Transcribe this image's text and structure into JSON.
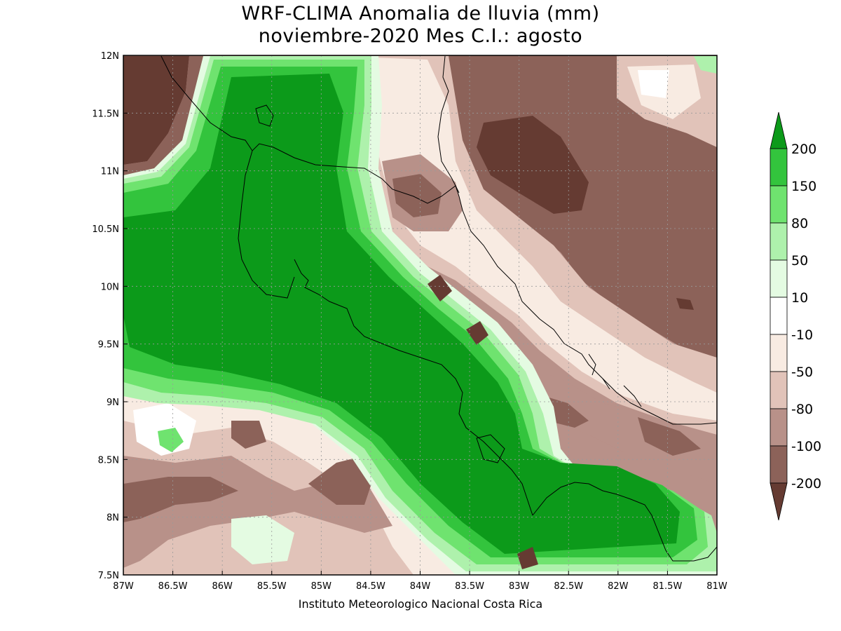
{
  "title_line1": "WRF-CLIMA Anomalia de lluvia (mm)",
  "title_line2": "noviembre-2020 Mes C.I.: agosto",
  "credit": "Instituto Meteorologico Nacional Costa Rica",
  "map": {
    "lon_range": [
      -87,
      -81
    ],
    "lat_range": [
      7.5,
      12
    ],
    "grid": "dotted",
    "x_ticks": [
      "87W",
      "86.5W",
      "86W",
      "85.5W",
      "85W",
      "84.5W",
      "84W",
      "83.5W",
      "83W",
      "82.5W",
      "82W",
      "81.5W",
      "81W"
    ],
    "y_ticks": [
      "12N",
      "11.5N",
      "11N",
      "10.5N",
      "10N",
      "9.5N",
      "9N",
      "8.5N",
      "8N",
      "7.5N"
    ]
  },
  "colorbar": {
    "colors": {
      "gt200": "#0c9a1a",
      "150_200": "#33c43d",
      "80_150": "#6fe36f",
      "50_80": "#aef1ac",
      "10_50": "#e4fbe2",
      "neutral": "#ffffff",
      "m50_m10": "#f8ebe2",
      "m80_m50": "#e1c3b9",
      "m100_m80": "#b89189",
      "m200_m100": "#8c6259",
      "lt_m200": "#653b32"
    },
    "labels": [
      "200",
      "150",
      "80",
      "50",
      "10",
      "-10",
      "-50",
      "-80",
      "-100",
      "-200"
    ]
  }
}
